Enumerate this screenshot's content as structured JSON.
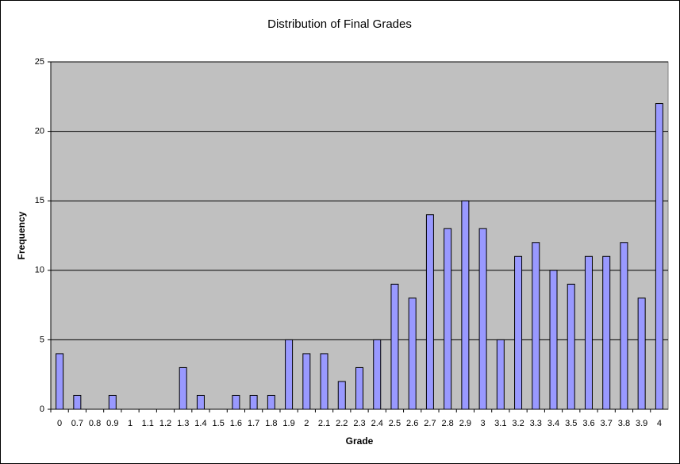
{
  "chart_data": {
    "type": "bar",
    "title": "Distribution of Final Grades",
    "x_label": "Grade",
    "y_label": "Frequency",
    "categories": [
      "0",
      "0.7",
      "0.8",
      "0.9",
      "1",
      "1.1",
      "1.2",
      "1.3",
      "1.4",
      "1.5",
      "1.6",
      "1.7",
      "1.8",
      "1.9",
      "2",
      "2.1",
      "2.2",
      "2.3",
      "2.4",
      "2.5",
      "2.6",
      "2.7",
      "2.8",
      "2.9",
      "3",
      "3.1",
      "3.2",
      "3.3",
      "3.4",
      "3.5",
      "3.6",
      "3.7",
      "3.8",
      "3.9",
      "4"
    ],
    "values": [
      4,
      1,
      0,
      1,
      0,
      0,
      0,
      3,
      1,
      0,
      1,
      1,
      1,
      5,
      4,
      4,
      2,
      3,
      5,
      9,
      8,
      14,
      13,
      15,
      13,
      5,
      11,
      12,
      10,
      9,
      11,
      11,
      12,
      8,
      22
    ],
    "color": "#9999ff",
    "ylim": [
      0,
      25
    ],
    "yticks": [
      0,
      5,
      10,
      15,
      20,
      25
    ],
    "grid": true
  }
}
